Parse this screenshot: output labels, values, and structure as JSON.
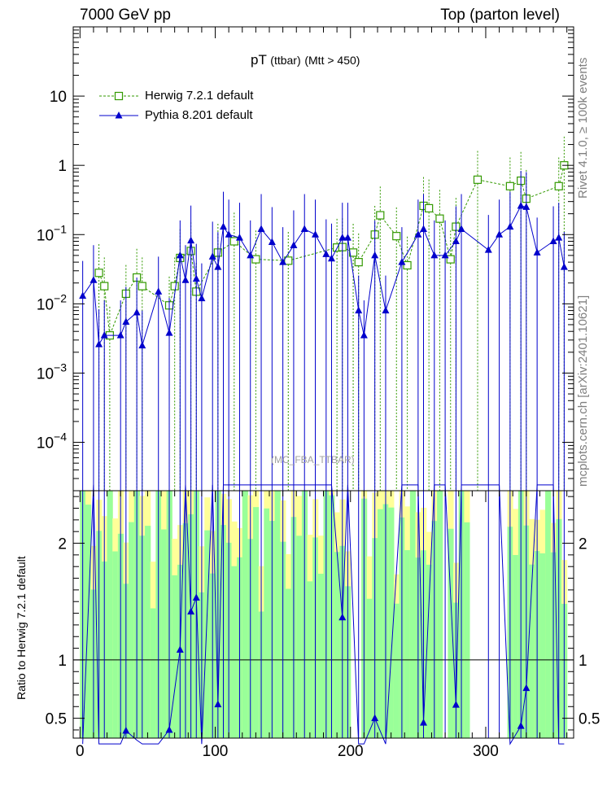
{
  "header": {
    "left": "7000 GeV pp",
    "right": "Top (parton level)",
    "side_top": "Rivet 4.1.0, ≥ 100k events",
    "side_bottom": "mcplots.cern.ch [arXiv:2401.10621]"
  },
  "chart_data": {
    "type": "line",
    "title": "pT",
    "title_small": "(ttbar)",
    "title_suffix": "(Mtt > 450)",
    "watermark": "(MC_FBA_TTBAR)",
    "xlabel": "",
    "xlim": [
      -5,
      365
    ],
    "xticks": [
      "0",
      "100",
      "200",
      "300"
    ],
    "main_panel": {
      "scale": "log",
      "ylim": [
        2e-05,
        100
      ],
      "yticks": [
        "10",
        "1",
        "10^-1",
        "10^-2",
        "10^-3",
        "10^-4"
      ]
    },
    "ratio_panel": {
      "ylabel": "Ratio to Herwig 7.2.1 default",
      "ylim": [
        0.33,
        2.45
      ],
      "yticks": [
        "0.5",
        "1",
        "2"
      ],
      "band_inner_color": "#99ff99",
      "band_outer_color": "#ffff99",
      "band_no_coverage": [
        [
          200,
          205
        ],
        [
          268,
          270
        ],
        [
          285,
          315
        ]
      ]
    },
    "series": [
      {
        "name": "Herwig 7.2.1 default",
        "color": "#339900",
        "marker": "open-square",
        "style": "dashed",
        "points": [
          {
            "x": 14,
            "y": 0.028
          },
          {
            "x": 18,
            "y": 0.018
          },
          {
            "x": 22,
            "y": 0.0035
          },
          {
            "x": 34,
            "y": 0.014
          },
          {
            "x": 42,
            "y": 0.024
          },
          {
            "x": 46,
            "y": 0.018
          },
          {
            "x": 66,
            "y": 0.0095
          },
          {
            "x": 70,
            "y": 0.018
          },
          {
            "x": 74,
            "y": 0.046
          },
          {
            "x": 82,
            "y": 0.058
          },
          {
            "x": 86,
            "y": 0.015
          },
          {
            "x": 102,
            "y": 0.055
          },
          {
            "x": 114,
            "y": 0.08
          },
          {
            "x": 130,
            "y": 0.044
          },
          {
            "x": 154,
            "y": 0.042
          },
          {
            "x": 190,
            "y": 0.065
          },
          {
            "x": 194,
            "y": 0.066
          },
          {
            "x": 202,
            "y": 0.055
          },
          {
            "x": 206,
            "y": 0.04
          },
          {
            "x": 218,
            "y": 0.1
          },
          {
            "x": 222,
            "y": 0.19
          },
          {
            "x": 234,
            "y": 0.095
          },
          {
            "x": 242,
            "y": 0.036
          },
          {
            "x": 254,
            "y": 0.26
          },
          {
            "x": 258,
            "y": 0.24
          },
          {
            "x": 266,
            "y": 0.17
          },
          {
            "x": 274,
            "y": 0.044
          },
          {
            "x": 278,
            "y": 0.13
          },
          {
            "x": 294,
            "y": 0.62
          },
          {
            "x": 318,
            "y": 0.5
          },
          {
            "x": 326,
            "y": 0.6
          },
          {
            "x": 330,
            "y": 0.33
          },
          {
            "x": 354,
            "y": 0.5
          },
          {
            "x": 358,
            "y": 1.0
          }
        ]
      },
      {
        "name": "Pythia 8.201 default",
        "color": "#0000cc",
        "marker": "filled-triangle",
        "style": "solid",
        "points": [
          {
            "x": 2,
            "y": 0.013
          },
          {
            "x": 10,
            "y": 0.022
          },
          {
            "x": 14,
            "y": 0.0026
          },
          {
            "x": 18,
            "y": 0.0035
          },
          {
            "x": 30,
            "y": 0.0035
          },
          {
            "x": 34,
            "y": 0.0055
          },
          {
            "x": 42,
            "y": 0.0075
          },
          {
            "x": 46,
            "y": 0.0025
          },
          {
            "x": 58,
            "y": 0.015
          },
          {
            "x": 66,
            "y": 0.0038
          },
          {
            "x": 74,
            "y": 0.05
          },
          {
            "x": 78,
            "y": 0.022
          },
          {
            "x": 82,
            "y": 0.082
          },
          {
            "x": 86,
            "y": 0.023
          },
          {
            "x": 90,
            "y": 0.012
          },
          {
            "x": 98,
            "y": 0.048
          },
          {
            "x": 102,
            "y": 0.034
          },
          {
            "x": 106,
            "y": 0.13
          },
          {
            "x": 110,
            "y": 0.1
          },
          {
            "x": 118,
            "y": 0.09
          },
          {
            "x": 126,
            "y": 0.05
          },
          {
            "x": 134,
            "y": 0.12
          },
          {
            "x": 142,
            "y": 0.078
          },
          {
            "x": 150,
            "y": 0.04
          },
          {
            "x": 158,
            "y": 0.07
          },
          {
            "x": 166,
            "y": 0.12
          },
          {
            "x": 174,
            "y": 0.1
          },
          {
            "x": 182,
            "y": 0.052
          },
          {
            "x": 186,
            "y": 0.045
          },
          {
            "x": 194,
            "y": 0.09
          },
          {
            "x": 198,
            "y": 0.09
          },
          {
            "x": 206,
            "y": 0.008
          },
          {
            "x": 210,
            "y": 0.0035
          },
          {
            "x": 218,
            "y": 0.05
          },
          {
            "x": 226,
            "y": 0.008
          },
          {
            "x": 238,
            "y": 0.04
          },
          {
            "x": 250,
            "y": 0.1
          },
          {
            "x": 254,
            "y": 0.12
          },
          {
            "x": 262,
            "y": 0.05
          },
          {
            "x": 270,
            "y": 0.05
          },
          {
            "x": 278,
            "y": 0.08
          },
          {
            "x": 282,
            "y": 0.12
          },
          {
            "x": 302,
            "y": 0.06
          },
          {
            "x": 310,
            "y": 0.1
          },
          {
            "x": 318,
            "y": 0.13
          },
          {
            "x": 326,
            "y": 0.26
          },
          {
            "x": 330,
            "y": 0.25
          },
          {
            "x": 338,
            "y": 0.055
          },
          {
            "x": 350,
            "y": 0.08
          },
          {
            "x": 354,
            "y": 0.09
          },
          {
            "x": 358,
            "y": 0.034
          }
        ]
      }
    ]
  }
}
